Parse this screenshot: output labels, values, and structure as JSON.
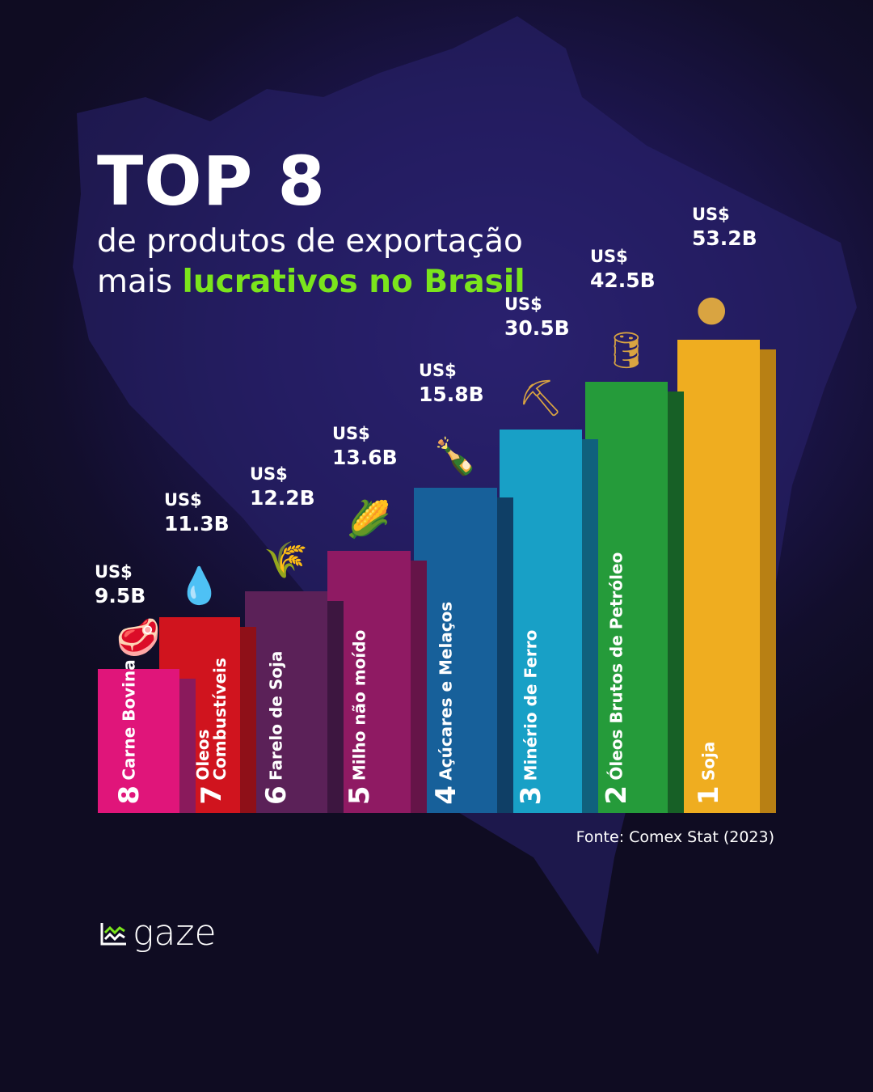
{
  "header": {
    "title": "TOP 8",
    "subtitle_line1": "de produtos de exportação",
    "subtitle_line2_prefix": "mais ",
    "subtitle_line2_highlight": "lucrativos no Brasil"
  },
  "chart_data": {
    "type": "bar",
    "title": "TOP 8 de produtos de exportação mais lucrativos no Brasil",
    "unit": "US$ bilhões",
    "categories": [
      "Carne Bovina",
      "Óleos Combustíveis",
      "Farelo de Soja",
      "Milho não moído",
      "Açúcares e Melaços",
      "Minério de Ferro",
      "Óleos Brutos de Petróleo",
      "Soja"
    ],
    "ranks": [
      "8",
      "7",
      "6",
      "5",
      "4",
      "3",
      "2",
      "1"
    ],
    "values": [
      9.5,
      11.3,
      12.2,
      13.6,
      15.8,
      30.5,
      42.5,
      53.2
    ],
    "value_labels": [
      "9.5B",
      "11.3B",
      "12.2B",
      "13.6B",
      "15.8B",
      "30.5B",
      "42.5B",
      "53.2B"
    ],
    "currency": "US$",
    "icons": [
      "steak-icon",
      "oil-drop-icon",
      "grain-sack-icon",
      "corn-icon",
      "liquor-bottle-icon",
      "ore-cart-icon",
      "crude-oil-drop-icon",
      "soybeans-icon"
    ],
    "colors": [
      "#e0157a",
      "#d0141e",
      "#5b2158",
      "#8f1a63",
      "#17609a",
      "#18a0c6",
      "#259b3a",
      "#efad20"
    ],
    "side_colors": [
      "#8a1a5c",
      "#8f1018",
      "#3d1640",
      "#651448",
      "#0f3f66",
      "#10617d",
      "#176026",
      "#b88014"
    ]
  },
  "footer": {
    "source": "Fonte:  Comex Stat (2023)",
    "brand": "gaze"
  }
}
